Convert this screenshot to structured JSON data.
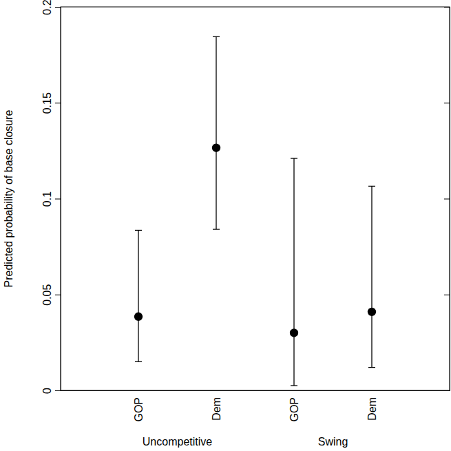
{
  "chart_data": {
    "type": "errorbar",
    "y_label": "Predicted probability of base closure",
    "categories": [
      "GOP",
      "Dem",
      "GOP",
      "Dem"
    ],
    "groups": [
      {
        "label": "Uncompetitive",
        "count": 2
      },
      {
        "label": "Swing",
        "count": 2
      }
    ],
    "values": [
      0.0385,
      0.1265,
      0.03,
      0.041
    ],
    "lower": [
      0.015,
      0.084,
      0.0025,
      0.012
    ],
    "upper": [
      0.0835,
      0.1845,
      0.121,
      0.1065
    ],
    "color": "#000000",
    "marker": "circle",
    "ylim": [
      0,
      0.2
    ],
    "yticks": [
      0,
      0.05,
      0.1,
      0.15,
      0.2
    ],
    "grid": false
  }
}
